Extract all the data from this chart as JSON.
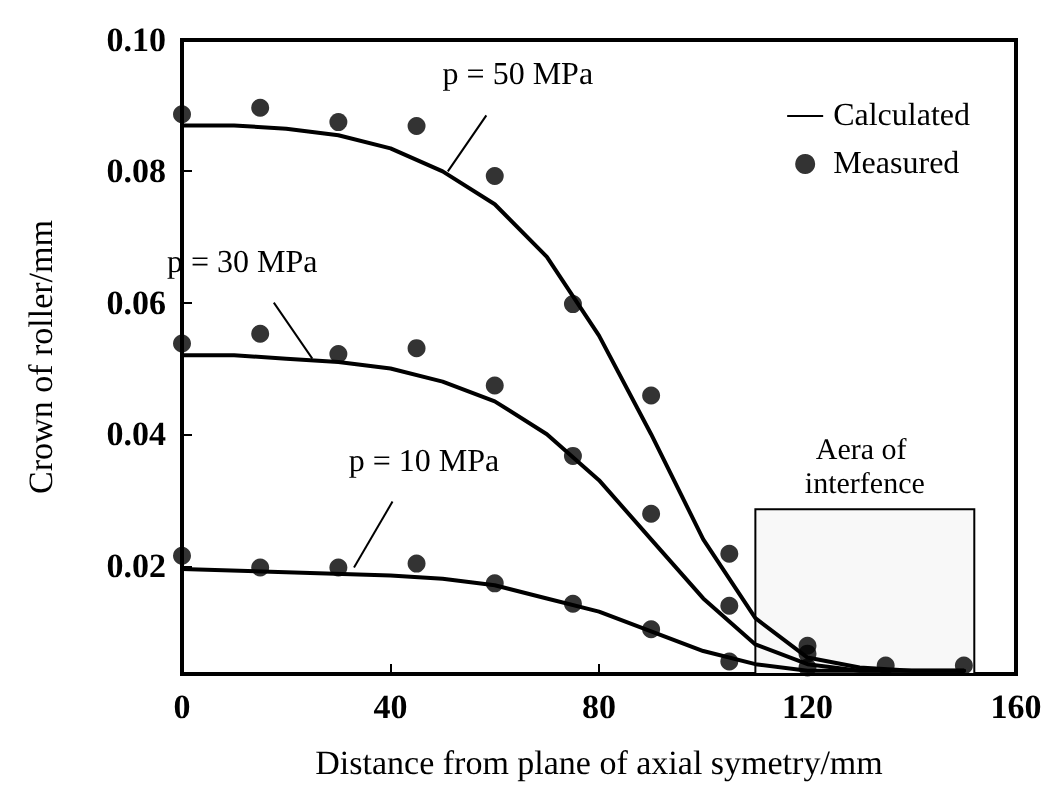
{
  "chart_data": {
    "type": "line",
    "xlabel": "Distance from plane of axial symetry/mm",
    "ylabel": "Crown of roller/mm",
    "xlim": [
      0,
      160
    ],
    "xticks": [
      0,
      40,
      80,
      120,
      160
    ],
    "ylim": [
      0.0035,
      0.1
    ],
    "yticks": [
      0.02,
      0.04,
      0.06,
      0.08,
      {
        "value": 0.1,
        "label": "0.10"
      }
    ],
    "grid": false,
    "legend": "top right",
    "line_style": "solid",
    "series": [
      {
        "name": "Calculated",
        "marker": "none",
        "color": "#000000",
        "x": [
          0,
          10,
          20,
          30,
          40,
          50,
          60,
          70,
          80,
          90,
          100,
          110,
          120,
          130,
          140,
          150
        ],
        "values": [
          0.087,
          0.087,
          0.0865,
          0.0855,
          0.0835,
          0.08,
          0.075,
          0.067,
          0.055,
          0.04,
          0.024,
          0.012,
          0.006,
          0.0045,
          0.004,
          0.004
        ]
      },
      {
        "marker": "none",
        "color": "#000000",
        "x": [
          0,
          10,
          20,
          30,
          40,
          50,
          60,
          70,
          80,
          90,
          100,
          110,
          120,
          130,
          140,
          150
        ],
        "values": [
          0.052,
          0.052,
          0.0515,
          0.051,
          0.05,
          0.048,
          0.045,
          0.04,
          0.033,
          0.024,
          0.015,
          0.008,
          0.005,
          0.004,
          0.004,
          0.004
        ]
      },
      {
        "marker": "none",
        "color": "#000000",
        "x": [
          0,
          20,
          40,
          50,
          60,
          70,
          80,
          90,
          100,
          110,
          120,
          130,
          140,
          150
        ],
        "values": [
          0.0195,
          0.019,
          0.0185,
          0.018,
          0.017,
          0.015,
          0.013,
          0.01,
          0.007,
          0.005,
          0.004,
          0.004,
          0.004,
          0.004
        ]
      },
      {
        "name": "Measured",
        "type": "scatter",
        "marker": "circle",
        "color": "#000000",
        "x": [
          0,
          15,
          30,
          45,
          60,
          75,
          90,
          105,
          120,
          135,
          150
        ],
        "values": [
          0.0887,
          0.0897,
          0.0875,
          0.0869,
          0.0793,
          0.0598,
          0.0459,
          0.0218,
          0.0078,
          0.0048,
          0.0048
        ]
      },
      {
        "type": "scatter",
        "marker": "circle",
        "color": "#000000",
        "x": [
          0,
          15,
          30,
          45,
          60,
          75,
          90,
          105,
          120
        ],
        "values": [
          0.0538,
          0.0553,
          0.0522,
          0.0531,
          0.0474,
          0.0367,
          0.0279,
          0.0139,
          0.0066
        ]
      },
      {
        "type": "scatter",
        "marker": "circle",
        "color": "#000000",
        "x": [
          0,
          15,
          30,
          45,
          60,
          75,
          90,
          105,
          120
        ],
        "values": [
          0.0215,
          0.0197,
          0.0197,
          0.0203,
          0.0173,
          0.0142,
          0.0103,
          0.0054,
          0.0045
        ]
      }
    ],
    "bands": [
      {
        "axis": "x",
        "from": 110,
        "to": 152,
        "label": "Aera of interfence",
        "color": "#f8f8f8"
      }
    ],
    "annotations": [
      {
        "text": "p = 50 MPa",
        "x": 51,
        "y": 0.08
      },
      {
        "text": "p = 30 MPa",
        "x": 25,
        "y": 0.0515
      },
      {
        "text": "p = 10 MPa",
        "x": 33,
        "y": 0.0197
      }
    ]
  }
}
